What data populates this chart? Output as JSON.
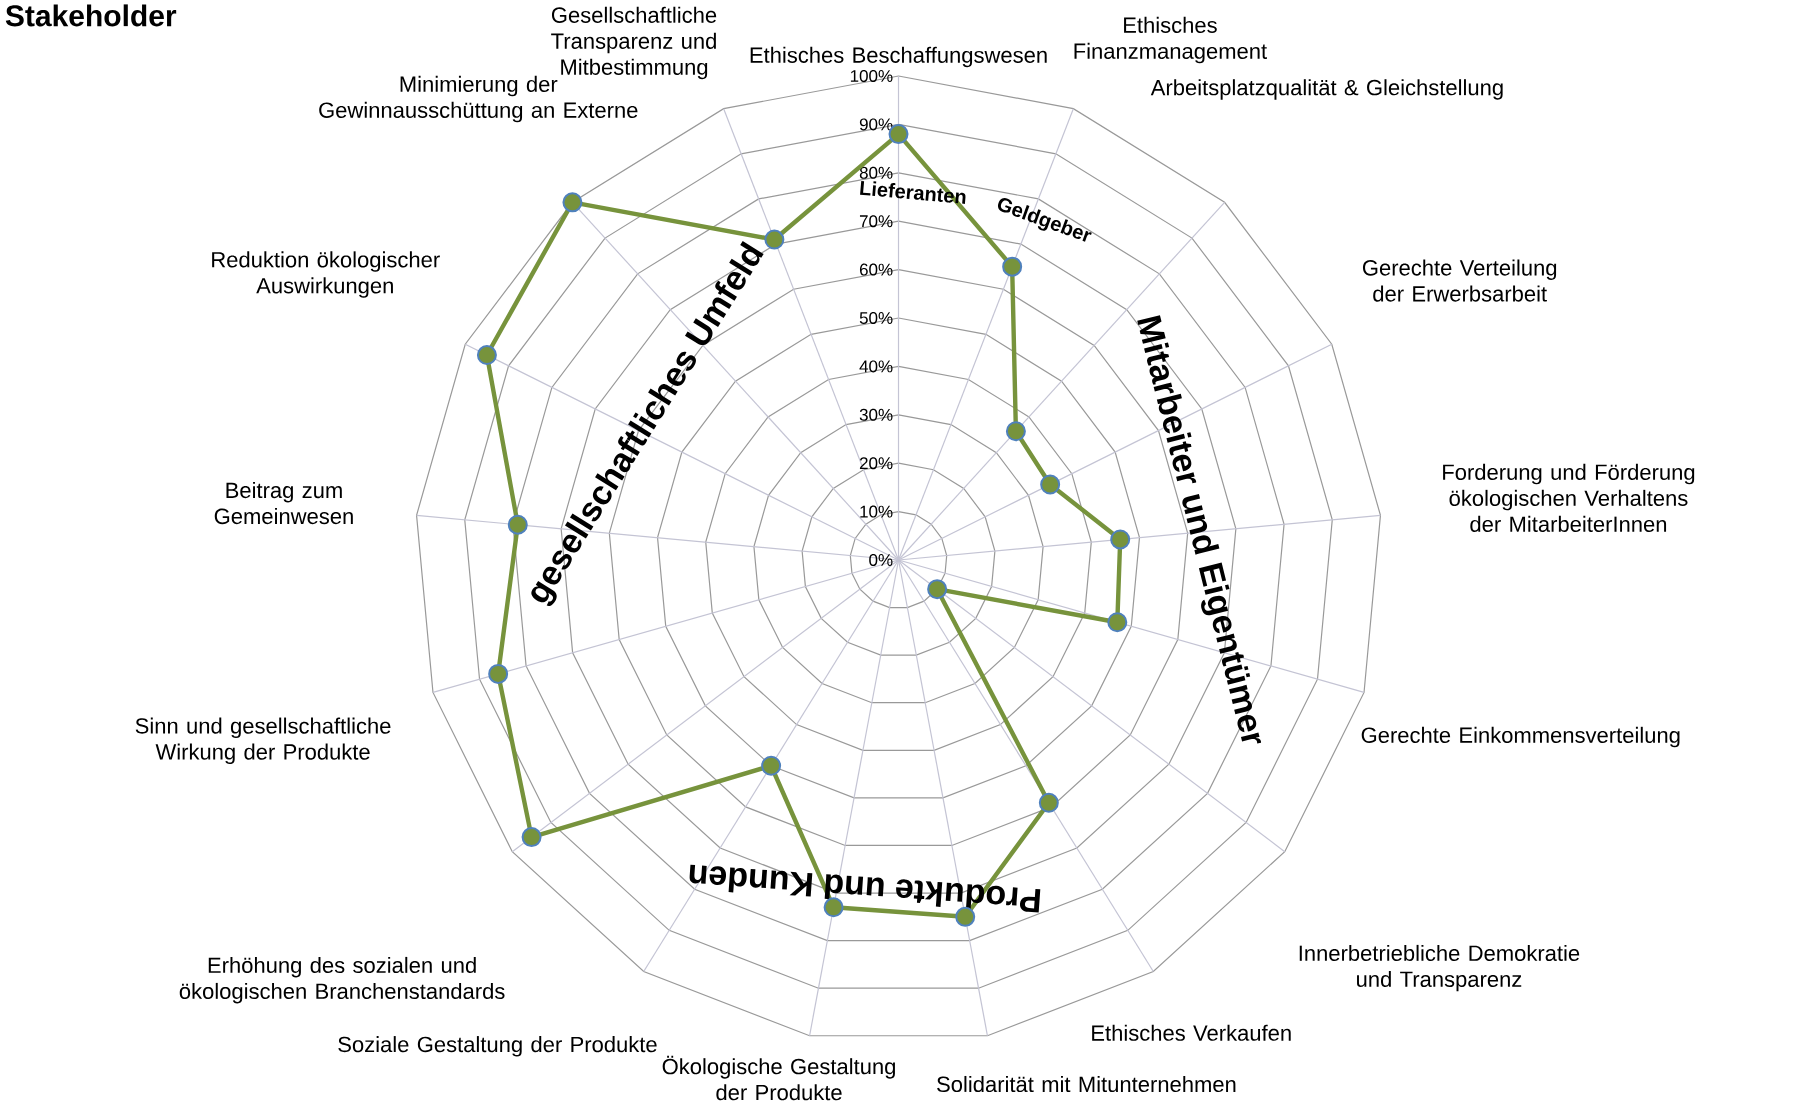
{
  "chart_data": {
    "type": "radar",
    "title": "Stakeholder",
    "categories": [
      "Ethisches Beschaffungswesen",
      "Ethisches Finanzmanagement",
      "Arbeitsplatzqualität & Gleichstellung",
      "Gerechte Verteilung der Erwerbsarbeit",
      "Forderung und Förderung ökologischen Verhaltens der MitarbeiterInnen",
      "Gerechte Einkommensverteilung",
      "Innerbetriebliche Demokratie und Transparenz",
      "Ethisches Verkaufen",
      "Solidarität mit Mitunternehmen",
      "Ökologische Gestaltung der Produkte",
      "Soziale Gestaltung der Produkte",
      "Erhöhung des sozialen und ökologischen Branchenstandards",
      "Sinn und gesellschaftliche Wirkung der Produkte",
      "Beitrag zum Gemeinwesen",
      "Reduktion ökologischer Auswirkungen",
      "Minimierung der Gewinnausschüttung an Externe",
      "Gesellschaftliche Transparenz und Mitbestimmung"
    ],
    "series": [
      {
        "color": "#77933c",
        "values": [
          88,
          65,
          36,
          35,
          46,
          47,
          10,
          59,
          75,
          73,
          50,
          95,
          86,
          79,
          95,
          100,
          71
        ]
      }
    ],
    "ylim": [
      0,
      100
    ],
    "yticks": [
      {
        "value": 0,
        "label": "0%"
      },
      {
        "value": 10,
        "label": "10%"
      },
      {
        "value": 20,
        "label": "20%"
      },
      {
        "value": 30,
        "label": "30%"
      },
      {
        "value": 40,
        "label": "40%"
      },
      {
        "value": 50,
        "label": "50%"
      },
      {
        "value": 60,
        "label": "60%"
      },
      {
        "value": 70,
        "label": "70%"
      },
      {
        "value": 80,
        "label": "80%"
      },
      {
        "value": 90,
        "label": "90%"
      },
      {
        "value": 100,
        "label": "100%"
      }
    ],
    "grid": true,
    "marker": "circle",
    "annotations": [
      "gesellschaftliches Umfeld",
      "Mitarbeiter und Eigentümer",
      "Produkte und Kunden",
      "Lieferanten",
      "Geldgeber"
    ]
  }
}
